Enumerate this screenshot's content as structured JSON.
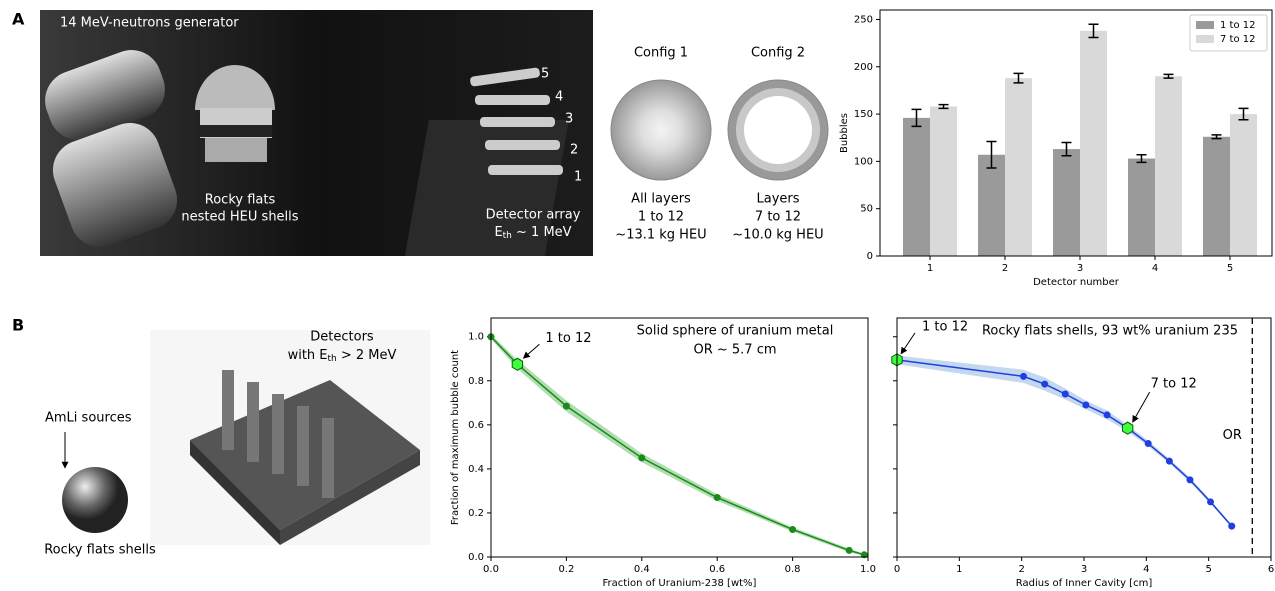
{
  "panels": {
    "a": "A",
    "b": "B"
  },
  "photo_a": {
    "generator": "14 MeV-neutrons generator",
    "shells": [
      "Rocky flats",
      "nested HEU shells"
    ],
    "detectors": [
      "5",
      "4",
      "3",
      "2",
      "1"
    ],
    "array": "Detector array",
    "threshold": {
      "main": "E",
      "sub": "th",
      "rest": " ~ 1 MeV"
    }
  },
  "configs": [
    {
      "title": "Config 1",
      "lines": [
        "All layers",
        "1 to 12",
        "~13.1 kg HEU"
      ]
    },
    {
      "title": "Config 2",
      "lines": [
        "Layers",
        "7 to 12",
        "~10.0 kg HEU"
      ]
    }
  ],
  "photo_b": {
    "detectors": "Detectors",
    "threshold": {
      "main": "with E",
      "sub": "th",
      "rest": " > 2 MeV"
    },
    "sources": "AmLi sources",
    "shells": "Rocky flats shells"
  },
  "chart_data": [
    {
      "type": "bar",
      "categories": [
        "1",
        "2",
        "3",
        "4",
        "5"
      ],
      "series": [
        {
          "name": "1 to 12",
          "color": "#9a9a9a",
          "values": [
            146,
            107,
            113,
            103,
            126
          ],
          "errors": [
            9,
            14,
            7,
            4,
            2
          ]
        },
        {
          "name": "7 to 12",
          "color": "#d9d9d9",
          "values": [
            158,
            188,
            238,
            190,
            150
          ],
          "errors": [
            2,
            5,
            7,
            2,
            6
          ]
        }
      ],
      "xlabel": "Detector number",
      "ylabel": "Bubbles",
      "ylim": [
        0,
        260
      ],
      "yticks": [
        0,
        50,
        100,
        150,
        200,
        250
      ],
      "legend": "upper right"
    },
    {
      "type": "line",
      "x": [
        0,
        0.07,
        0.2,
        0.4,
        0.6,
        0.8,
        0.95,
        0.99
      ],
      "series": [
        {
          "color": "#1a8a1a",
          "band_color": "#8fd08f",
          "values": [
            1.0,
            0.875,
            0.685,
            0.45,
            0.27,
            0.125,
            0.03,
            0.01
          ],
          "errors": [
            0.01,
            0.02,
            0.025,
            0.02,
            0.015,
            0.01,
            0.008,
            0.005
          ]
        }
      ],
      "highlights": [
        {
          "x": 0.07,
          "y": 0.875,
          "label": "1 to 12"
        }
      ],
      "annotations": [
        "Solid sphere of uranium metal",
        "OR ~ 5.7 cm"
      ],
      "xlabel": "Fraction of Uranium-238 [wt%]",
      "ylabel": "Fraction of maximum bubble count",
      "xlim": [
        0,
        1
      ],
      "ylim": [
        0,
        1.085
      ],
      "xticks": [
        {
          "value": 0,
          "label": "0.0"
        },
        {
          "value": 0.2,
          "label": "0.2"
        },
        {
          "value": 0.4,
          "label": "0.4"
        },
        {
          "value": 0.6,
          "label": "0.6"
        },
        {
          "value": 0.8,
          "label": "0.8"
        },
        {
          "value": 1,
          "label": "1.0"
        }
      ],
      "yticks": [
        {
          "value": 0,
          "label": "0.0"
        },
        {
          "value": 0.2,
          "label": "0.2"
        },
        {
          "value": 0.4,
          "label": "0.4"
        },
        {
          "value": 0.6,
          "label": "0.6"
        },
        {
          "value": 0.8,
          "label": "0.8"
        },
        {
          "value": 1,
          "label": "1.0"
        }
      ]
    },
    {
      "type": "line",
      "x": [
        0,
        2.03,
        2.37,
        2.7,
        3.03,
        3.37,
        3.7,
        4.03,
        4.37,
        4.7,
        5.03,
        5.37
      ],
      "series": [
        {
          "color": "#1f3fe0",
          "band_color": "#a9c6e8",
          "values": [
            0.895,
            0.82,
            0.785,
            0.74,
            0.69,
            0.645,
            0.585,
            0.515,
            0.435,
            0.35,
            0.25,
            0.14
          ],
          "errors": [
            0.02,
            0.03,
            0.03,
            0.025,
            0.02,
            0.02,
            0.015,
            0.012,
            0.01,
            0.01,
            0.008,
            0.006
          ]
        }
      ],
      "highlights": [
        {
          "x": 0,
          "y": 0.895,
          "label": "1 to 12"
        },
        {
          "x": 3.7,
          "y": 0.585,
          "label": "7 to 12"
        }
      ],
      "vlines": [
        {
          "x": 5.7,
          "label": "OR"
        }
      ],
      "annotations": [
        "Rocky flats shells, 93 wt% uranium 235"
      ],
      "xlabel": "Radius of Inner Cavity [cm]",
      "xlim": [
        0,
        6
      ],
      "ylim": [
        0,
        1.085
      ],
      "xticks": [
        0,
        1,
        2,
        3,
        4,
        5,
        6
      ],
      "yticks": [
        0,
        0.2,
        0.4,
        0.6,
        0.8,
        1
      ],
      "ytick_labels": false
    }
  ]
}
